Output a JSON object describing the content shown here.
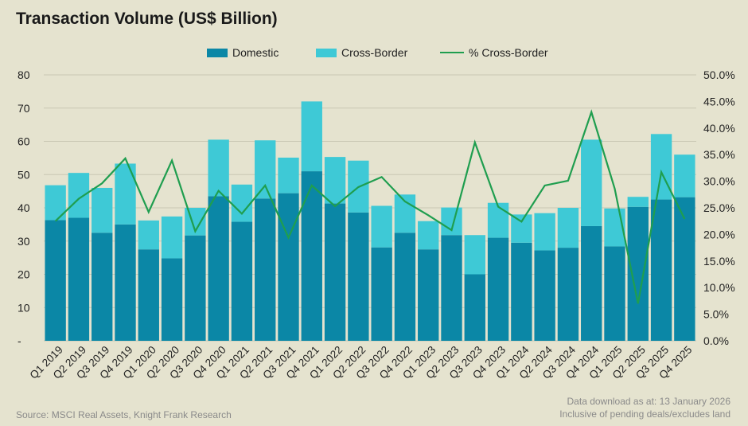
{
  "chart_data": {
    "type": "bar",
    "title": "Transaction Volume (US$ Billion)",
    "categories": [
      "Q1 2019",
      "Q2 2019",
      "Q3 2019",
      "Q4 2019",
      "Q1 2020",
      "Q2 2020",
      "Q3 2020",
      "Q4 2020",
      "Q1 2021",
      "Q2 2021",
      "Q3 2021",
      "Q4 2021",
      "Q1 2022",
      "Q2 2022",
      "Q3 2022",
      "Q4 2022",
      "Q1 2023",
      "Q2 2023",
      "Q3 2023",
      "Q4 2023",
      "Q1 2024",
      "Q2 2024",
      "Q3 2024",
      "Q4 2024",
      "Q1 2025",
      "Q2 2025",
      "Q3 2025",
      "Q4 2025"
    ],
    "stacked": true,
    "series": [
      {
        "name": "Domestic",
        "type": "bar",
        "axis": "left",
        "color": "#0b87a6",
        "values": [
          36.3,
          37,
          32.5,
          35,
          27.5,
          24.8,
          31.7,
          43.5,
          35.8,
          42.8,
          44.4,
          51,
          41.3,
          38.6,
          28.1,
          32.5,
          27.5,
          31.8,
          20,
          31,
          29.5,
          27.2,
          28,
          34.5,
          28.4,
          40.3,
          42.5,
          43.2
        ]
      },
      {
        "name": "Cross-Border",
        "type": "bar",
        "axis": "left",
        "color": "#3ec9d6",
        "values": [
          10.5,
          13.5,
          13.5,
          18.3,
          8.7,
          12.6,
          8.3,
          17,
          11.2,
          17.5,
          10.7,
          21,
          14,
          15.6,
          12.5,
          11.5,
          8.5,
          8.3,
          11.8,
          10.5,
          8.5,
          11.2,
          12,
          26,
          11.4,
          3,
          19.7,
          12.8
        ]
      },
      {
        "name": "% Cross-Border",
        "type": "line",
        "axis": "right",
        "color": "#1f9e4f",
        "values": [
          22.5,
          26.7,
          29.6,
          34.3,
          24.2,
          33.9,
          20.6,
          28.2,
          23.9,
          29.2,
          19.4,
          29.2,
          25.3,
          28.9,
          30.8,
          26.2,
          23.6,
          20.8,
          37.3,
          25.2,
          22.4,
          29.2,
          30.1,
          43,
          28.6,
          7,
          31.7,
          22.9
        ]
      }
    ],
    "y_left": {
      "min": 0,
      "max": 80,
      "ticks": [
        0,
        10,
        20,
        30,
        40,
        50,
        60,
        70,
        80
      ],
      "tick_labels": [
        "-",
        "10",
        "20",
        "30",
        "40",
        "50",
        "60",
        "70",
        "80"
      ]
    },
    "y_right": {
      "min": 0,
      "max": 50,
      "ticks": [
        0,
        5,
        10,
        15,
        20,
        25,
        30,
        35,
        40,
        45,
        50
      ],
      "tick_labels": [
        "0.0%",
        "5.0%",
        "10.0%",
        "15.0%",
        "20.0%",
        "25.0%",
        "30.0%",
        "35.0%",
        "40.0%",
        "45.0%",
        "50.0%"
      ]
    },
    "grid": true,
    "legend_position": "top-center",
    "source": "Source: MSCI Real Assets, Knight Frank Research",
    "notes": [
      "Data download as at: 13 January 2026",
      "Inclusive of pending deals/excludes land"
    ]
  }
}
